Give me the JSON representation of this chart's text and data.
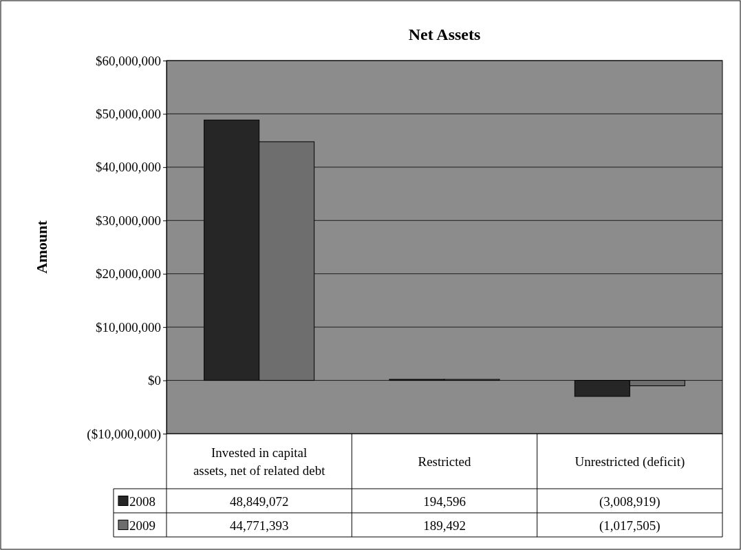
{
  "chart_data": {
    "type": "bar",
    "title": "Net Assets",
    "ylabel": "Amount",
    "categories": [
      "Invested in capital assets, net of related debt",
      "Restricted",
      "Unrestricted (deficit)"
    ],
    "series": [
      {
        "name": "2008",
        "color": "#262626",
        "values": [
          48849072,
          194596,
          -3008919
        ],
        "value_labels": [
          "48,849,072",
          "194,596",
          "(3,008,919)"
        ]
      },
      {
        "name": "2009",
        "color": "#6e6e6e",
        "values": [
          44771393,
          189492,
          -1017505
        ],
        "value_labels": [
          "44,771,393",
          "189,492",
          "(1,017,505)"
        ]
      }
    ],
    "ylim": [
      -10000000,
      60000000
    ],
    "yticks": [
      {
        "value": -10000000,
        "label": "($10,000,000)"
      },
      {
        "value": 0,
        "label": "$0"
      },
      {
        "value": 10000000,
        "label": "$10,000,000"
      },
      {
        "value": 20000000,
        "label": "$20,000,000"
      },
      {
        "value": 30000000,
        "label": "$30,000,000"
      },
      {
        "value": 40000000,
        "label": "$40,000,000"
      },
      {
        "value": 50000000,
        "label": "$50,000,000"
      },
      {
        "value": 60000000,
        "label": "$60,000,000"
      }
    ],
    "grid": "y",
    "legend": "bottom"
  }
}
